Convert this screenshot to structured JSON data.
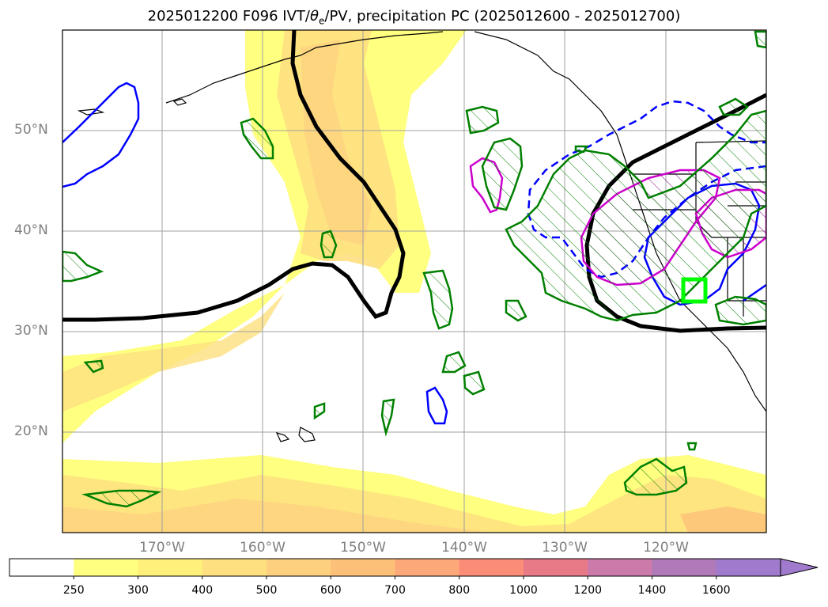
{
  "title": {
    "prefix": "2025012200 F096 IVT/",
    "theta": "θ",
    "sub": "e",
    "suffix": "/PV, precipitation PC (2025012600 - 2025012700)"
  },
  "axes": {
    "lat_labels": [
      "50°N",
      "40°N",
      "30°N",
      "20°N"
    ],
    "lon_labels": [
      "170°W",
      "160°W",
      "150°W",
      "140°W",
      "130°W",
      "120°W"
    ]
  },
  "colorbar": {
    "ticks": [
      "250",
      "300",
      "400",
      "500",
      "600",
      "700",
      "800",
      "1000",
      "1200",
      "1400",
      "1600"
    ],
    "colors": [
      "#ffffff",
      "#ffff80",
      "#fef07a",
      "#fee080",
      "#fdd080",
      "#fdc078",
      "#fda878",
      "#fa8c78",
      "#e87a88",
      "#cc7aaa",
      "#b07ab8",
      "#a07acc"
    ],
    "extend": "max"
  },
  "legend_colors": {
    "pv_contour": "#000000",
    "theta_e_positive": "#0000ff",
    "precip_pc": "#008000",
    "region_box": "#00ff00",
    "magenta_contour": "#cc00cc"
  }
}
